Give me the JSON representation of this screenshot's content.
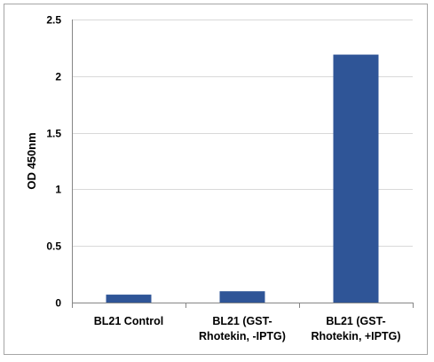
{
  "chart_data": {
    "type": "bar",
    "title": "",
    "xlabel": "",
    "ylabel": "OD 450nm",
    "ylim": [
      0,
      2.5
    ],
    "yticks": [
      "0",
      "0.5",
      "1",
      "1.5",
      "2",
      "2.5"
    ],
    "grid": true,
    "legend": "none",
    "bar_color": "#2F5597",
    "categories": [
      [
        "BL21 Control"
      ],
      [
        "BL21 (GST-",
        "Rhotekin, -IPTG)"
      ],
      [
        "BL21 (GST-",
        "Rhotekin, +IPTG)"
      ]
    ],
    "values": [
      0.07,
      0.1,
      2.19
    ]
  }
}
